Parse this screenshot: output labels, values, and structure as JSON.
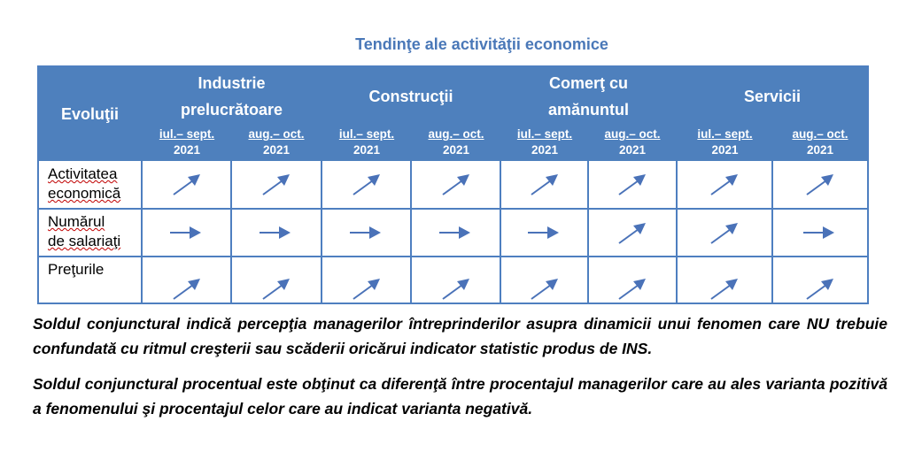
{
  "title": "Tendinţe ale activităţii economice",
  "table": {
    "row_header_label": "Evoluţii",
    "groups": [
      {
        "label_line1": "Industrie",
        "label_line2": "prelucrătoare"
      },
      {
        "label_line1": "Construcţii",
        "label_line2": ""
      },
      {
        "label_line1": "Comerţ cu",
        "label_line2": "amănuntul"
      },
      {
        "label_line1": "Servicii",
        "label_line2": ""
      }
    ],
    "periods": [
      {
        "line1": "iul.– sept.",
        "line2": "2021"
      },
      {
        "line1": "aug.– oct.",
        "line2": "2021"
      },
      {
        "line1": "iul.– sept.",
        "line2": "2021"
      },
      {
        "line1": "aug.– oct.",
        "line2": "2021"
      },
      {
        "line1": "iul.– sept.",
        "line2": "2021"
      },
      {
        "line1": "aug.– oct.",
        "line2": "2021"
      },
      {
        "line1": "iul.– sept.",
        "line2": "2021"
      },
      {
        "line1": "aug.– oct.",
        "line2": "2021"
      }
    ],
    "rows": [
      {
        "label_line1": "Activitatea",
        "label_line2": "economică",
        "trends": [
          "up",
          "up",
          "up",
          "up",
          "up",
          "up",
          "up",
          "up"
        ]
      },
      {
        "label_line1": "Numărul",
        "label_line2": "de salariaţi",
        "trends": [
          "flat",
          "flat",
          "flat",
          "flat",
          "flat",
          "up",
          "up",
          "flat"
        ]
      },
      {
        "label_line1": "Preţurile",
        "label_line2": "",
        "trends": [
          "up",
          "up",
          "up",
          "up",
          "up",
          "up",
          "up",
          "up"
        ]
      }
    ],
    "arrow_color": "#4a72b8",
    "header_bg": "#4e80bd"
  },
  "notes": [
    "Soldul conjunctural indică percepţia managerilor întreprinderilor asupra dinamicii unui fenomen care NU trebuie confundată cu ritmul creşterii sau scăderii oricărui indicator statistic produs de INS.",
    "Soldul conjunctural procentual este obţinut ca diferenţă între procentajul managerilor care au ales varianta pozitivă a fenomenului şi procentajul celor care au indicat varianta negativă."
  ]
}
